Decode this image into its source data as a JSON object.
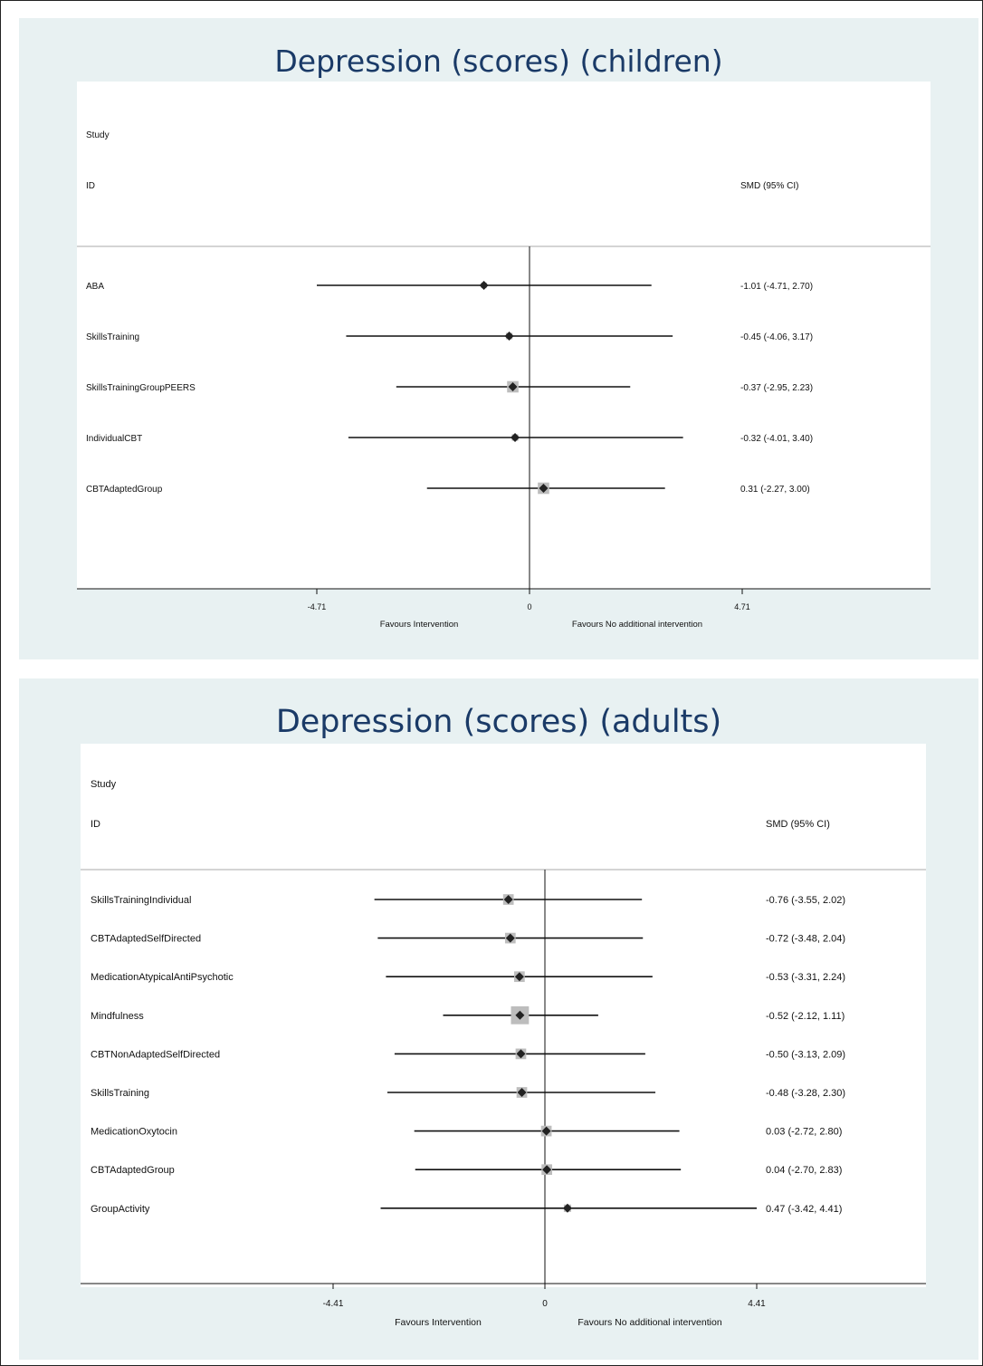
{
  "colors": {
    "panel_bg": "#e8f1f2",
    "title": "#1a3a67",
    "box": "#bdbdbd",
    "marker": "#222222"
  },
  "chart_data": [
    {
      "type": "forest",
      "title": "Depression (scores) (children)",
      "header_study": "Study",
      "header_id": "ID",
      "header_effect": "SMD (95% CI)",
      "xticks": [
        "-4.71",
        "0",
        "4.71"
      ],
      "xlim": [
        -4.71,
        4.71
      ],
      "favours_left": "Favours Intervention",
      "favours_right": "Favours No additional intervention",
      "rows": [
        {
          "label": "ABA",
          "est": -1.01,
          "lo": -4.71,
          "hi": 2.7,
          "ci": "-1.01 (-4.71, 2.70)",
          "weight": 0.7
        },
        {
          "label": "SkillsTraining",
          "est": -0.45,
          "lo": -4.06,
          "hi": 3.17,
          "ci": "-0.45 (-4.06, 3.17)",
          "weight": 0.8
        },
        {
          "label": "SkillsTrainingGroupPEERS",
          "est": -0.37,
          "lo": -2.95,
          "hi": 2.23,
          "ci": "-0.37 (-2.95, 2.23)",
          "weight": 1.4
        },
        {
          "label": "IndividualCBT",
          "est": -0.32,
          "lo": -4.01,
          "hi": 3.4,
          "ci": "-0.32 (-4.01, 3.40)",
          "weight": 0.8
        },
        {
          "label": "CBTAdaptedGroup",
          "est": 0.31,
          "lo": -2.27,
          "hi": 3.0,
          "ci": "0.31 (-2.27, 3.00)",
          "weight": 1.4
        }
      ]
    },
    {
      "type": "forest",
      "title": "Depression (scores) (adults)",
      "header_study": "Study",
      "header_id": "ID",
      "header_effect": "SMD (95% CI)",
      "xticks": [
        "-4.41",
        "0",
        "4.41"
      ],
      "xlim": [
        -4.41,
        4.41
      ],
      "favours_left": "Favours Intervention",
      "favours_right": "Favours No additional intervention",
      "rows": [
        {
          "label": "SkillsTrainingIndividual",
          "est": -0.76,
          "lo": -3.55,
          "hi": 2.02,
          "ci": "-0.76 (-3.55, 2.02)",
          "weight": 1.3
        },
        {
          "label": "CBTAdaptedSelfDirected",
          "est": -0.72,
          "lo": -3.48,
          "hi": 2.04,
          "ci": "-0.72 (-3.48, 2.04)",
          "weight": 1.3
        },
        {
          "label": "MedicationAtypicalAntiPsychotic",
          "est": -0.53,
          "lo": -3.31,
          "hi": 2.24,
          "ci": "-0.53 (-3.31, 2.24)",
          "weight": 1.3
        },
        {
          "label": "Mindfulness",
          "est": -0.52,
          "lo": -2.12,
          "hi": 1.11,
          "ci": "-0.52 (-2.12, 1.11)",
          "weight": 2.2
        },
        {
          "label": "CBTNonAdaptedSelfDirected",
          "est": -0.5,
          "lo": -3.13,
          "hi": 2.09,
          "ci": "-0.50 (-3.13, 2.09)",
          "weight": 1.3
        },
        {
          "label": "SkillsTraining",
          "est": -0.48,
          "lo": -3.28,
          "hi": 2.3,
          "ci": "-0.48 (-3.28, 2.30)",
          "weight": 1.3
        },
        {
          "label": "MedicationOxytocin",
          "est": 0.03,
          "lo": -2.72,
          "hi": 2.8,
          "ci": "0.03 (-2.72, 2.80)",
          "weight": 1.3
        },
        {
          "label": "CBTAdaptedGroup",
          "est": 0.04,
          "lo": -2.7,
          "hi": 2.83,
          "ci": "0.04 (-2.70, 2.83)",
          "weight": 1.3
        },
        {
          "label": "GroupActivity",
          "est": 0.47,
          "lo": -3.42,
          "hi": 4.41,
          "ci": "0.47 (-3.42, 4.41)",
          "weight": 0.9
        }
      ]
    }
  ]
}
